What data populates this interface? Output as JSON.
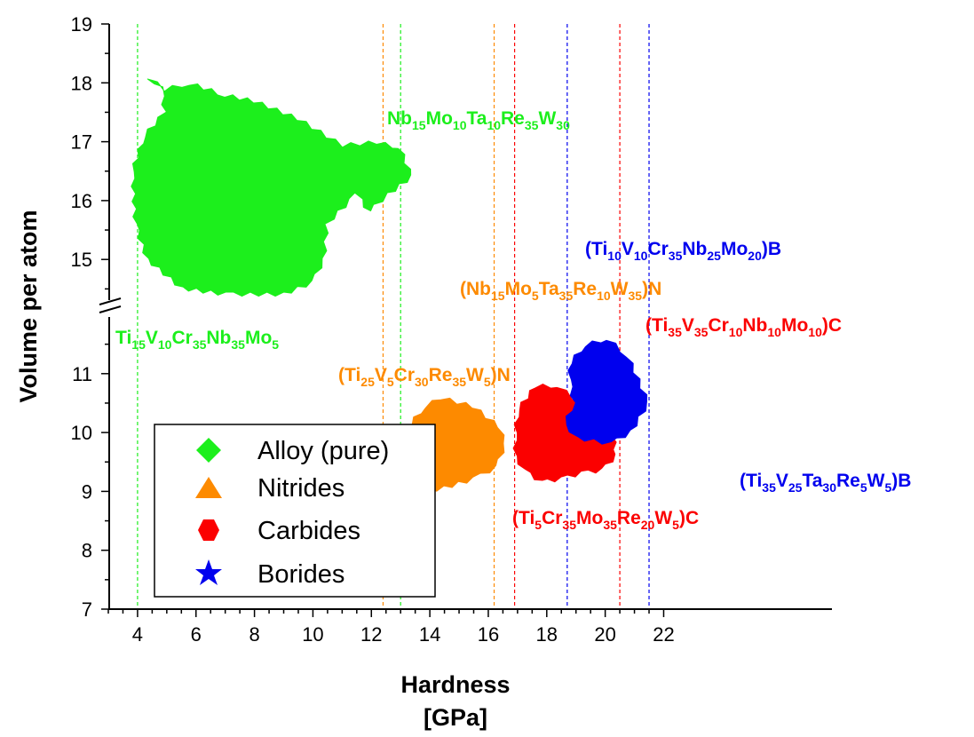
{
  "chart_data": {
    "type": "scatter",
    "xlabel": "Hardness",
    "xlabel_unit": "[GPa]",
    "ylabel": "Volume per atom",
    "xlim": [
      3,
      22
    ],
    "ylim_lower": [
      7,
      11.9
    ],
    "ylim_upper": [
      14.3,
      19
    ],
    "axis_break": true,
    "x_ticks": [
      "4",
      "6",
      "8",
      "10",
      "12",
      "14",
      "16",
      "18",
      "20",
      "22"
    ],
    "y_ticks_lower": [
      "7",
      "8",
      "9",
      "10",
      "11"
    ],
    "y_ticks_upper": [
      "15",
      "16",
      "17",
      "18",
      "19"
    ],
    "legend_position": "bottom-left",
    "series": [
      {
        "name": "Alloy (pure)",
        "marker": "diamond",
        "color": "#1cef1c",
        "region": [
          [
            4.4,
            18.1
          ],
          [
            4.9,
            17.9
          ],
          [
            5.8,
            18.0
          ],
          [
            7.0,
            17.8
          ],
          [
            8.0,
            17.7
          ],
          [
            9.5,
            17.4
          ],
          [
            10.5,
            17.1
          ],
          [
            11,
            16.95
          ],
          [
            12.2,
            17.0
          ],
          [
            13.0,
            16.9
          ],
          [
            13.4,
            16.4
          ],
          [
            12.6,
            16.1
          ],
          [
            11.9,
            15.8
          ],
          [
            11.5,
            16.1
          ],
          [
            11.3,
            16.0
          ],
          [
            10.5,
            15.6
          ],
          [
            10.4,
            15.0
          ],
          [
            10.0,
            14.6
          ],
          [
            9.0,
            14.4
          ],
          [
            7.0,
            14.4
          ],
          [
            5.5,
            14.5
          ],
          [
            4.3,
            15.0
          ],
          [
            3.9,
            15.6
          ],
          [
            3.8,
            16.5
          ],
          [
            4.2,
            17.1
          ],
          [
            4.9,
            17.5
          ],
          [
            4.8,
            17.9
          ]
        ]
      },
      {
        "name": "Nitrides",
        "marker": "triangle",
        "color": "#fd8a00",
        "region": [
          [
            12.4,
            9.4
          ],
          [
            13.0,
            9.95
          ],
          [
            13.8,
            10.45
          ],
          [
            14.4,
            10.6
          ],
          [
            15.5,
            10.45
          ],
          [
            16.4,
            10.1
          ],
          [
            16.6,
            9.8
          ],
          [
            16.3,
            9.4
          ],
          [
            15.5,
            9.2
          ],
          [
            14.5,
            9.05
          ],
          [
            13.4,
            8.95
          ],
          [
            12.5,
            9.0
          ],
          [
            12.3,
            9.1
          ]
        ]
      },
      {
        "name": "Carbides",
        "marker": "hexagon",
        "color": "#fb0000",
        "region": [
          [
            16.9,
            10.0
          ],
          [
            17.0,
            10.4
          ],
          [
            17.6,
            10.8
          ],
          [
            18.4,
            10.8
          ],
          [
            18.9,
            10.6
          ],
          [
            19.4,
            10.5
          ],
          [
            19.9,
            10.25
          ],
          [
            20.3,
            9.95
          ],
          [
            20.4,
            9.6
          ],
          [
            19.9,
            9.35
          ],
          [
            19.2,
            9.3
          ],
          [
            18.5,
            9.2
          ],
          [
            17.8,
            9.15
          ],
          [
            17.2,
            9.35
          ],
          [
            16.9,
            9.6
          ]
        ]
      },
      {
        "name": "Borides",
        "marker": "star",
        "color": "#0000ee",
        "region": [
          [
            18.8,
            11.2
          ],
          [
            19.3,
            11.5
          ],
          [
            20.1,
            11.6
          ],
          [
            20.8,
            11.3
          ],
          [
            21.5,
            10.5
          ],
          [
            20.9,
            10.0
          ],
          [
            20.2,
            9.8
          ],
          [
            19.0,
            9.9
          ],
          [
            18.6,
            10.15
          ],
          [
            18.9,
            10.5
          ],
          [
            18.75,
            10.9
          ]
        ]
      }
    ],
    "reference_lines": [
      {
        "x": 4.0,
        "color": "#1cef1c"
      },
      {
        "x": 13.0,
        "color": "#1cef1c"
      },
      {
        "x": 12.4,
        "color": "#fd8a00"
      },
      {
        "x": 16.2,
        "color": "#fd8a00"
      },
      {
        "x": 16.9,
        "color": "#fb0000"
      },
      {
        "x": 20.5,
        "color": "#fb0000"
      },
      {
        "x": 18.7,
        "color": "#0000ee"
      },
      {
        "x": 21.5,
        "color": "#0000ee"
      }
    ],
    "annotations": [
      {
        "id": "ann_nb_mo_ta_re_w",
        "color": "#1cef1c",
        "parts": [
          [
            "Nb",
            ""
          ],
          [
            "15",
            "sub"
          ],
          [
            "Mo",
            ""
          ],
          [
            "10",
            "sub"
          ],
          [
            "Ta",
            ""
          ],
          [
            "10",
            "sub"
          ],
          [
            "Re",
            ""
          ],
          [
            "35",
            "sub"
          ],
          [
            "W",
            ""
          ],
          [
            "30",
            "sub"
          ]
        ]
      },
      {
        "id": "ann_ti_v_cr_nb_mo",
        "color": "#1cef1c",
        "parts": [
          [
            "Ti",
            ""
          ],
          [
            "15",
            "sub"
          ],
          [
            "V",
            ""
          ],
          [
            "10",
            "sub"
          ],
          [
            "Cr",
            ""
          ],
          [
            "35",
            "sub"
          ],
          [
            "Nb",
            ""
          ],
          [
            "35",
            "sub"
          ],
          [
            "Mo",
            ""
          ],
          [
            "5",
            "sub"
          ]
        ]
      },
      {
        "id": "ann_nb_mo_ta_re_w_n",
        "color": "#fd8a00",
        "parts": [
          [
            "(Nb",
            ""
          ],
          [
            "15",
            "sub"
          ],
          [
            "Mo",
            ""
          ],
          [
            "5",
            "sub"
          ],
          [
            "Ta",
            ""
          ],
          [
            "35",
            "sub"
          ],
          [
            "Re",
            ""
          ],
          [
            "10",
            "sub"
          ],
          [
            "W",
            ""
          ],
          [
            "35",
            "sub"
          ],
          [
            ")N",
            ""
          ]
        ]
      },
      {
        "id": "ann_ti_v_cr_re_w_n",
        "color": "#fd8a00",
        "parts": [
          [
            "(Ti",
            ""
          ],
          [
            "25",
            "sub"
          ],
          [
            "V",
            ""
          ],
          [
            "5",
            "sub"
          ],
          [
            "Cr",
            ""
          ],
          [
            "30",
            "sub"
          ],
          [
            "Re",
            ""
          ],
          [
            "35",
            "sub"
          ],
          [
            "W",
            ""
          ],
          [
            "5",
            "sub"
          ],
          [
            ")N",
            ""
          ]
        ]
      },
      {
        "id": "ann_ti_v_cr_nb_mo_b",
        "color": "#0000ee",
        "parts": [
          [
            "(Ti",
            ""
          ],
          [
            "10",
            "sub"
          ],
          [
            "V",
            ""
          ],
          [
            "10",
            "sub"
          ],
          [
            "Cr",
            ""
          ],
          [
            "35",
            "sub"
          ],
          [
            "Nb",
            ""
          ],
          [
            "25",
            "sub"
          ],
          [
            "Mo",
            ""
          ],
          [
            "20",
            "sub"
          ],
          [
            ")B",
            ""
          ]
        ]
      },
      {
        "id": "ann_ti_v_cr_nb_mo_c",
        "color": "#fb0000",
        "parts": [
          [
            "(Ti",
            ""
          ],
          [
            "35",
            "sub"
          ],
          [
            "V",
            ""
          ],
          [
            "35",
            "sub"
          ],
          [
            "Cr",
            ""
          ],
          [
            "10",
            "sub"
          ],
          [
            "Nb",
            ""
          ],
          [
            "10",
            "sub"
          ],
          [
            "Mo",
            ""
          ],
          [
            "10",
            "sub"
          ],
          [
            ")C",
            ""
          ]
        ]
      },
      {
        "id": "ann_ti_v_ta_re_w_b",
        "color": "#0000ee",
        "parts": [
          [
            "(Ti",
            ""
          ],
          [
            "35",
            "sub"
          ],
          [
            "V",
            ""
          ],
          [
            "25",
            "sub"
          ],
          [
            "Ta",
            ""
          ],
          [
            "30",
            "sub"
          ],
          [
            "Re",
            ""
          ],
          [
            "5",
            "sub"
          ],
          [
            "W",
            ""
          ],
          [
            "5",
            "sub"
          ],
          [
            ")B",
            ""
          ]
        ]
      },
      {
        "id": "ann_ti_cr_mo_re_w_c",
        "color": "#fb0000",
        "parts": [
          [
            "(Ti",
            ""
          ],
          [
            "5",
            "sub"
          ],
          [
            "Cr",
            ""
          ],
          [
            "35",
            "sub"
          ],
          [
            "Mo",
            ""
          ],
          [
            "35",
            "sub"
          ],
          [
            "Re",
            ""
          ],
          [
            "20",
            "sub"
          ],
          [
            "W",
            ""
          ],
          [
            "5",
            "sub"
          ],
          [
            ")C",
            ""
          ]
        ]
      }
    ]
  }
}
